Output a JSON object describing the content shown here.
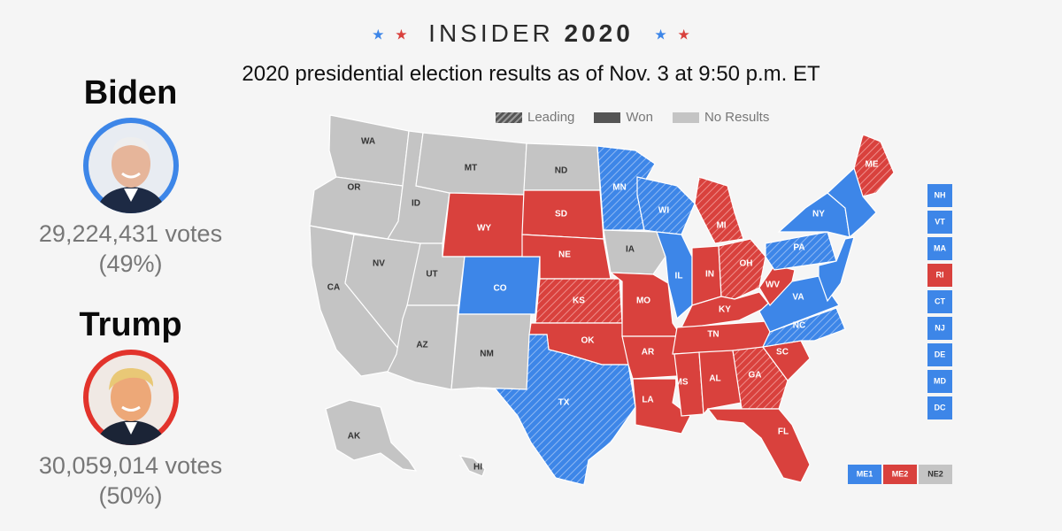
{
  "brand": {
    "name_light": "INSIDER",
    "name_bold": "2020"
  },
  "subtitle": "2020 presidential election results as of Nov. 3 at 9:50 p.m. ET",
  "colors": {
    "dem": "#3d86e8",
    "rep": "#d9413d",
    "none": "#c4c4c4",
    "background": "#f5f5f5"
  },
  "candidates": [
    {
      "name": "Biden",
      "votes": "29,224,431 votes",
      "pct": "(49%)",
      "ring": "#3d86e8"
    },
    {
      "name": "Trump",
      "votes": "30,059,014 votes",
      "pct": "(50%)",
      "ring": "#e2332b"
    }
  ],
  "legend": [
    {
      "label": "Leading",
      "icon": "hatched-swatch"
    },
    {
      "label": "Won",
      "icon": "solid-swatch"
    },
    {
      "label": "No Results",
      "icon": "gray-swatch"
    }
  ],
  "states": [
    {
      "abbr": "WA",
      "status": "none",
      "leading": false
    },
    {
      "abbr": "OR",
      "status": "none",
      "leading": false
    },
    {
      "abbr": "CA",
      "status": "none",
      "leading": false
    },
    {
      "abbr": "NV",
      "status": "none",
      "leading": false
    },
    {
      "abbr": "ID",
      "status": "none",
      "leading": false
    },
    {
      "abbr": "MT",
      "status": "none",
      "leading": false
    },
    {
      "abbr": "WY",
      "status": "rep",
      "leading": false
    },
    {
      "abbr": "UT",
      "status": "none",
      "leading": false
    },
    {
      "abbr": "AZ",
      "status": "none",
      "leading": false
    },
    {
      "abbr": "CO",
      "status": "dem",
      "leading": false
    },
    {
      "abbr": "NM",
      "status": "none",
      "leading": false
    },
    {
      "abbr": "ND",
      "status": "none",
      "leading": false
    },
    {
      "abbr": "SD",
      "status": "rep",
      "leading": false
    },
    {
      "abbr": "NE",
      "status": "rep",
      "leading": false
    },
    {
      "abbr": "KS",
      "status": "rep",
      "leading": true
    },
    {
      "abbr": "OK",
      "status": "rep",
      "leading": false
    },
    {
      "abbr": "TX",
      "status": "dem",
      "leading": true
    },
    {
      "abbr": "MN",
      "status": "dem",
      "leading": true
    },
    {
      "abbr": "IA",
      "status": "none",
      "leading": false
    },
    {
      "abbr": "MO",
      "status": "rep",
      "leading": false
    },
    {
      "abbr": "AR",
      "status": "rep",
      "leading": false
    },
    {
      "abbr": "LA",
      "status": "rep",
      "leading": false
    },
    {
      "abbr": "WI",
      "status": "dem",
      "leading": true
    },
    {
      "abbr": "IL",
      "status": "dem",
      "leading": false
    },
    {
      "abbr": "MI",
      "status": "rep",
      "leading": true
    },
    {
      "abbr": "IN",
      "status": "rep",
      "leading": false
    },
    {
      "abbr": "OH",
      "status": "rep",
      "leading": true
    },
    {
      "abbr": "KY",
      "status": "rep",
      "leading": false
    },
    {
      "abbr": "TN",
      "status": "rep",
      "leading": false
    },
    {
      "abbr": "MS",
      "status": "rep",
      "leading": false
    },
    {
      "abbr": "AL",
      "status": "rep",
      "leading": false
    },
    {
      "abbr": "GA",
      "status": "rep",
      "leading": true
    },
    {
      "abbr": "FL",
      "status": "rep",
      "leading": false
    },
    {
      "abbr": "SC",
      "status": "rep",
      "leading": false
    },
    {
      "abbr": "NC",
      "status": "dem",
      "leading": true
    },
    {
      "abbr": "VA",
      "status": "dem",
      "leading": false
    },
    {
      "abbr": "WV",
      "status": "rep",
      "leading": false
    },
    {
      "abbr": "PA",
      "status": "dem",
      "leading": true
    },
    {
      "abbr": "NY",
      "status": "dem",
      "leading": false
    },
    {
      "abbr": "ME",
      "status": "rep",
      "leading": true
    },
    {
      "abbr": "AK",
      "status": "none",
      "leading": false
    },
    {
      "abbr": "HI",
      "status": "none",
      "leading": false
    }
  ],
  "small_states": [
    {
      "abbr": "NH",
      "status": "dem"
    },
    {
      "abbr": "VT",
      "status": "dem"
    },
    {
      "abbr": "MA",
      "status": "dem"
    },
    {
      "abbr": "RI",
      "status": "rep"
    },
    {
      "abbr": "CT",
      "status": "dem"
    },
    {
      "abbr": "NJ",
      "status": "dem"
    },
    {
      "abbr": "DE",
      "status": "dem"
    },
    {
      "abbr": "MD",
      "status": "dem"
    },
    {
      "abbr": "DC",
      "status": "dem"
    }
  ],
  "districts": [
    {
      "abbr": "ME1",
      "status": "dem"
    },
    {
      "abbr": "ME2",
      "status": "rep"
    },
    {
      "abbr": "NE2",
      "status": "none"
    }
  ]
}
